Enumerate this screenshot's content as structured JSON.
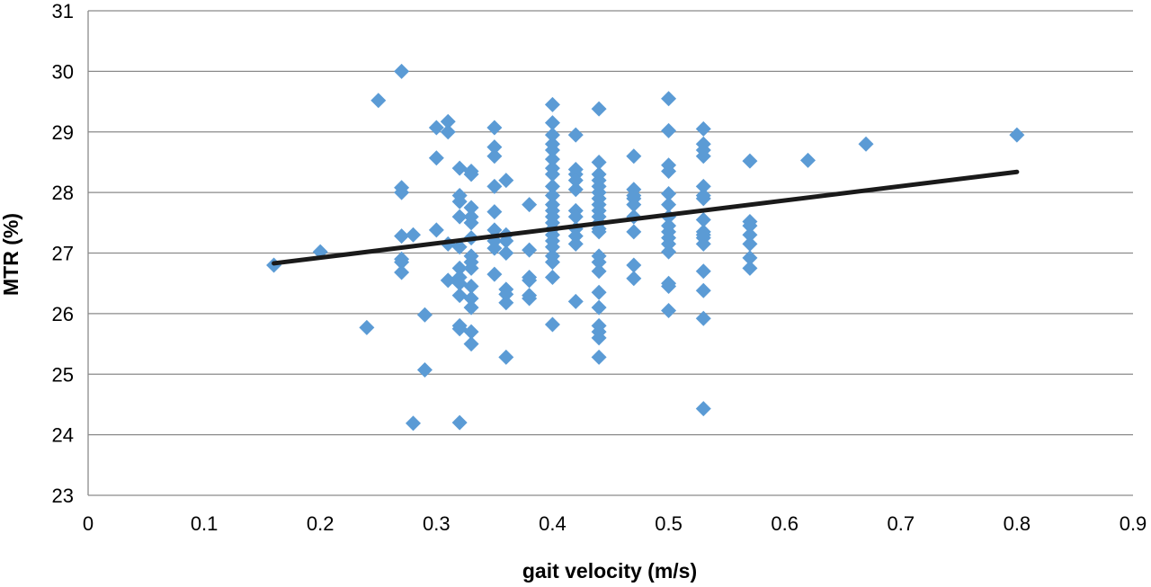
{
  "chart_data": {
    "type": "scatter",
    "title": "",
    "xlabel": "gait velocity (m/s)",
    "ylabel": "MTR (%)",
    "xlim": [
      0,
      0.9
    ],
    "ylim": [
      23,
      31
    ],
    "x_ticks": [
      0,
      0.1,
      0.2,
      0.3,
      0.4,
      0.5,
      0.6,
      0.7,
      0.8,
      0.9
    ],
    "x_tick_labels": [
      "0",
      "0.1",
      "0.2",
      "0.3",
      "0.4",
      "0.5",
      "0.6",
      "0.7",
      "0.8",
      "0.9"
    ],
    "y_ticks": [
      23,
      24,
      25,
      26,
      27,
      28,
      29,
      30,
      31
    ],
    "y_tick_labels": [
      "23",
      "24",
      "25",
      "26",
      "27",
      "28",
      "29",
      "30",
      "31"
    ],
    "grid": "horizontal",
    "legend": "none",
    "marker": "diamond",
    "colors": {
      "points": "#5b9bd5",
      "trendline": "#1a1a1a",
      "grid": "#8a8a8a"
    },
    "series": [
      {
        "points": [
          [
            0.16,
            26.8
          ],
          [
            0.2,
            27.02
          ],
          [
            0.24,
            25.77
          ],
          [
            0.25,
            29.52
          ],
          [
            0.27,
            30.0
          ],
          [
            0.27,
            28.08
          ],
          [
            0.27,
            28.0
          ],
          [
            0.27,
            27.28
          ],
          [
            0.27,
            26.9
          ],
          [
            0.27,
            26.85
          ],
          [
            0.27,
            26.68
          ],
          [
            0.28,
            27.3
          ],
          [
            0.28,
            24.19
          ],
          [
            0.29,
            25.98
          ],
          [
            0.29,
            25.07
          ],
          [
            0.3,
            29.07
          ],
          [
            0.3,
            28.57
          ],
          [
            0.3,
            27.38
          ],
          [
            0.31,
            29.17
          ],
          [
            0.31,
            29.0
          ],
          [
            0.31,
            27.15
          ],
          [
            0.31,
            26.55
          ],
          [
            0.32,
            28.4
          ],
          [
            0.32,
            27.95
          ],
          [
            0.32,
            27.85
          ],
          [
            0.32,
            27.6
          ],
          [
            0.32,
            27.1
          ],
          [
            0.32,
            26.75
          ],
          [
            0.32,
            26.6
          ],
          [
            0.32,
            26.5
          ],
          [
            0.32,
            26.3
          ],
          [
            0.32,
            25.8
          ],
          [
            0.32,
            25.75
          ],
          [
            0.32,
            24.2
          ],
          [
            0.33,
            28.35
          ],
          [
            0.33,
            28.3
          ],
          [
            0.33,
            27.75
          ],
          [
            0.33,
            27.6
          ],
          [
            0.33,
            27.5
          ],
          [
            0.33,
            27.25
          ],
          [
            0.33,
            26.95
          ],
          [
            0.33,
            26.85
          ],
          [
            0.33,
            26.75
          ],
          [
            0.33,
            26.45
          ],
          [
            0.33,
            26.25
          ],
          [
            0.33,
            26.1
          ],
          [
            0.33,
            25.7
          ],
          [
            0.33,
            25.5
          ],
          [
            0.35,
            29.07
          ],
          [
            0.35,
            28.75
          ],
          [
            0.35,
            28.6
          ],
          [
            0.35,
            28.1
          ],
          [
            0.35,
            27.68
          ],
          [
            0.35,
            27.38
          ],
          [
            0.35,
            27.2
          ],
          [
            0.35,
            27.08
          ],
          [
            0.35,
            26.65
          ],
          [
            0.36,
            28.2
          ],
          [
            0.36,
            27.3
          ],
          [
            0.36,
            27.2
          ],
          [
            0.36,
            27.0
          ],
          [
            0.36,
            26.4
          ],
          [
            0.36,
            26.32
          ],
          [
            0.36,
            26.18
          ],
          [
            0.36,
            25.28
          ],
          [
            0.38,
            27.8
          ],
          [
            0.38,
            27.05
          ],
          [
            0.38,
            26.6
          ],
          [
            0.38,
            26.55
          ],
          [
            0.38,
            26.3
          ],
          [
            0.38,
            26.25
          ],
          [
            0.4,
            29.45
          ],
          [
            0.4,
            29.15
          ],
          [
            0.4,
            28.95
          ],
          [
            0.4,
            28.8
          ],
          [
            0.4,
            28.7
          ],
          [
            0.4,
            28.55
          ],
          [
            0.4,
            28.4
          ],
          [
            0.4,
            28.3
          ],
          [
            0.4,
            28.1
          ],
          [
            0.4,
            27.95
          ],
          [
            0.4,
            27.8
          ],
          [
            0.4,
            27.7
          ],
          [
            0.4,
            27.6
          ],
          [
            0.4,
            27.5
          ],
          [
            0.4,
            27.4
          ],
          [
            0.4,
            27.3
          ],
          [
            0.4,
            27.2
          ],
          [
            0.4,
            27.1
          ],
          [
            0.4,
            26.95
          ],
          [
            0.4,
            26.85
          ],
          [
            0.4,
            26.6
          ],
          [
            0.4,
            25.82
          ],
          [
            0.42,
            28.95
          ],
          [
            0.42,
            28.38
          ],
          [
            0.42,
            28.3
          ],
          [
            0.42,
            28.2
          ],
          [
            0.42,
            28.05
          ],
          [
            0.42,
            27.7
          ],
          [
            0.42,
            27.6
          ],
          [
            0.42,
            27.4
          ],
          [
            0.42,
            27.28
          ],
          [
            0.42,
            27.15
          ],
          [
            0.42,
            26.2
          ],
          [
            0.44,
            29.38
          ],
          [
            0.44,
            28.5
          ],
          [
            0.44,
            28.3
          ],
          [
            0.44,
            28.2
          ],
          [
            0.44,
            28.1
          ],
          [
            0.44,
            28.0
          ],
          [
            0.44,
            27.9
          ],
          [
            0.44,
            27.8
          ],
          [
            0.44,
            27.7
          ],
          [
            0.44,
            27.6
          ],
          [
            0.44,
            27.5
          ],
          [
            0.44,
            27.4
          ],
          [
            0.44,
            27.35
          ],
          [
            0.44,
            26.95
          ],
          [
            0.44,
            26.85
          ],
          [
            0.44,
            26.7
          ],
          [
            0.44,
            26.35
          ],
          [
            0.44,
            26.1
          ],
          [
            0.44,
            25.8
          ],
          [
            0.44,
            25.7
          ],
          [
            0.44,
            25.6
          ],
          [
            0.44,
            25.28
          ],
          [
            0.47,
            28.6
          ],
          [
            0.47,
            28.05
          ],
          [
            0.47,
            27.95
          ],
          [
            0.47,
            27.9
          ],
          [
            0.47,
            27.8
          ],
          [
            0.47,
            27.6
          ],
          [
            0.47,
            27.35
          ],
          [
            0.47,
            26.8
          ],
          [
            0.47,
            26.58
          ],
          [
            0.5,
            29.55
          ],
          [
            0.5,
            29.02
          ],
          [
            0.5,
            28.45
          ],
          [
            0.5,
            28.35
          ],
          [
            0.5,
            27.98
          ],
          [
            0.5,
            27.8
          ],
          [
            0.5,
            27.6
          ],
          [
            0.5,
            27.45
          ],
          [
            0.5,
            27.35
          ],
          [
            0.5,
            27.25
          ],
          [
            0.5,
            27.15
          ],
          [
            0.5,
            27.02
          ],
          [
            0.5,
            26.5
          ],
          [
            0.5,
            26.45
          ],
          [
            0.5,
            26.05
          ],
          [
            0.53,
            29.05
          ],
          [
            0.53,
            28.8
          ],
          [
            0.53,
            28.7
          ],
          [
            0.53,
            28.6
          ],
          [
            0.53,
            28.1
          ],
          [
            0.53,
            27.95
          ],
          [
            0.53,
            27.9
          ],
          [
            0.53,
            27.55
          ],
          [
            0.53,
            27.35
          ],
          [
            0.53,
            27.3
          ],
          [
            0.53,
            27.25
          ],
          [
            0.53,
            27.15
          ],
          [
            0.53,
            26.7
          ],
          [
            0.53,
            26.38
          ],
          [
            0.53,
            25.92
          ],
          [
            0.53,
            24.43
          ],
          [
            0.57,
            28.52
          ],
          [
            0.57,
            27.52
          ],
          [
            0.57,
            27.45
          ],
          [
            0.57,
            27.3
          ],
          [
            0.57,
            27.15
          ],
          [
            0.57,
            26.92
          ],
          [
            0.57,
            26.75
          ],
          [
            0.62,
            28.53
          ],
          [
            0.67,
            28.8
          ],
          [
            0.8,
            28.95
          ]
        ]
      }
    ],
    "trendline": {
      "x": [
        0.16,
        0.8
      ],
      "y": [
        26.83,
        28.34
      ]
    }
  }
}
